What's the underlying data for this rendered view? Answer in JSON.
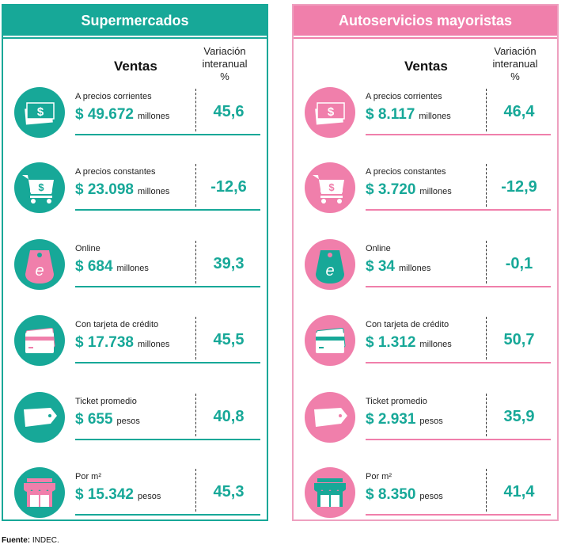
{
  "panels": [
    {
      "title": "Supermercados",
      "ventas": "Ventas",
      "variacion": [
        "Variación",
        "interanual",
        "%"
      ],
      "rows": [
        {
          "icon": "money-icon",
          "label": "A precios corrientes",
          "value": "$ 49.672",
          "unit": "millones",
          "pct": "45,6"
        },
        {
          "icon": "cart-icon",
          "label": "A precios constantes",
          "value": "$ 23.098",
          "unit": "millones",
          "pct": "-12,6"
        },
        {
          "icon": "online-bag-icon",
          "label": "Online",
          "value": "$ 684",
          "unit": "millones",
          "pct": "39,3"
        },
        {
          "icon": "credit-card-icon",
          "label": "Con tarjeta de crédito",
          "value": "$ 17.738",
          "unit": "millones",
          "pct": "45,5"
        },
        {
          "icon": "ticket-tag-icon",
          "label": "Ticket promedio",
          "value": "$ 655",
          "unit": "pesos",
          "pct": "40,8"
        },
        {
          "icon": "store-icon",
          "label": "Por m²",
          "value": "$ 15.342",
          "unit": "pesos",
          "pct": "45,3"
        }
      ]
    },
    {
      "title": "Autoservicios mayoristas",
      "ventas": "Ventas",
      "variacion": [
        "Variación",
        "interanual",
        "%"
      ],
      "rows": [
        {
          "icon": "money-icon",
          "label": "A precios corrientes",
          "value": "$ 8.117",
          "unit": "millones",
          "pct": "46,4"
        },
        {
          "icon": "cart-icon",
          "label": "A precios constantes",
          "value": "$ 3.720",
          "unit": "millones",
          "pct": "-12,9"
        },
        {
          "icon": "online-bag-icon",
          "label": "Online",
          "value": "$ 34",
          "unit": "millones",
          "pct": "-0,1"
        },
        {
          "icon": "credit-card-icon",
          "label": "Con tarjeta de crédito",
          "value": "$ 1.312",
          "unit": "millones",
          "pct": "50,7"
        },
        {
          "icon": "ticket-tag-icon",
          "label": "Ticket promedio",
          "value": "$ 2.931",
          "unit": "pesos",
          "pct": "35,9"
        },
        {
          "icon": "store-icon",
          "label": "Por m²",
          "value": "$ 8.350",
          "unit": "pesos",
          "pct": "41,4"
        }
      ]
    }
  ],
  "footer": {
    "label": "Fuente:",
    "text": "INDEC."
  },
  "colors": {
    "teal": "#17a898",
    "pink": "#f07fab"
  }
}
